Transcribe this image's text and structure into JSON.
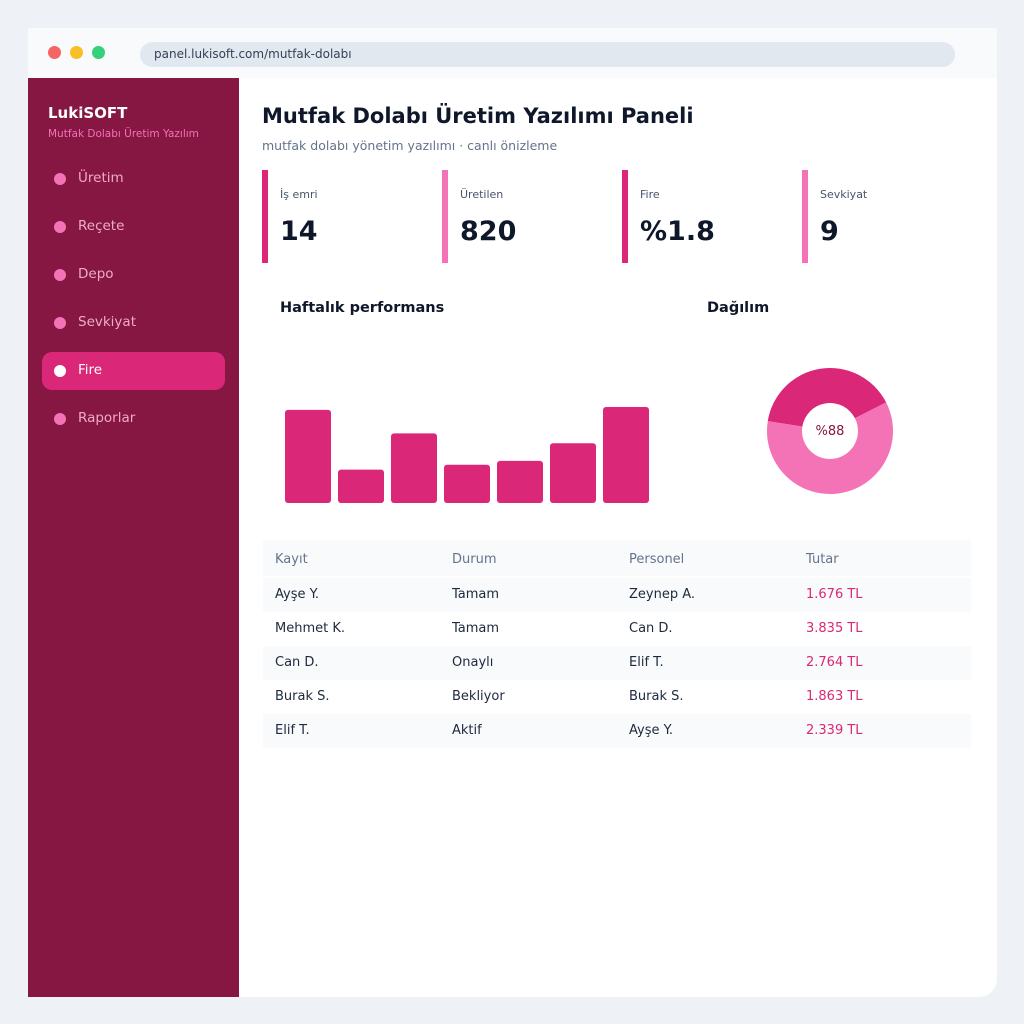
{
  "browser": {
    "url": "panel.lukisoft.com/mutfak-dolabı"
  },
  "sidebar": {
    "brand": "LukiSOFT",
    "subtitle": "Mutfak Dolabı Üretim Yazılım",
    "items": [
      {
        "label": "Üretim",
        "active": false
      },
      {
        "label": "Reçete",
        "active": false
      },
      {
        "label": "Depo",
        "active": false
      },
      {
        "label": "Sevkiyat",
        "active": false
      },
      {
        "label": "Fire",
        "active": true
      },
      {
        "label": "Raporlar",
        "active": false
      }
    ]
  },
  "header": {
    "title": "Mutfak Dolabı Üretim Yazılımı Paneli",
    "subtitle": "mutfak dolabı yönetim yazılımı · canlı önizleme"
  },
  "stats": [
    {
      "label": "İş emri",
      "value": "14"
    },
    {
      "label": "Üretilen",
      "value": "820"
    },
    {
      "label": "Fire",
      "value": "%1.8"
    },
    {
      "label": "Sevkiyat",
      "value": "9"
    }
  ],
  "performance": {
    "title": "Haftalık performans"
  },
  "distribution": {
    "title": "Dağılım",
    "center_label": "%88"
  },
  "chart_data": [
    {
      "type": "bar",
      "title": "Haftalık performans",
      "values": [
        95,
        34,
        71,
        39,
        43,
        61,
        98
      ],
      "ylim": [
        0,
        100
      ],
      "color": "#db2777"
    },
    {
      "type": "pie",
      "title": "Dağılım",
      "values": [
        40,
        60
      ],
      "colors": [
        "#db2777",
        "#f472b6"
      ],
      "center_label": "%88"
    }
  ],
  "table": {
    "headers": [
      "Kayıt",
      "Durum",
      "Personel",
      "Tutar"
    ],
    "rows": [
      [
        "Ayşe Y.",
        "Tamam",
        "Zeynep A.",
        "1.676 TL"
      ],
      [
        "Mehmet K.",
        "Tamam",
        "Can D.",
        "3.835 TL"
      ],
      [
        "Can D.",
        "Onaylı",
        "Elif T.",
        "2.764 TL"
      ],
      [
        "Burak S.",
        "Bekliyor",
        "Burak S.",
        "1.863 TL"
      ],
      [
        "Elif T.",
        "Aktif",
        "Ayşe Y.",
        "2.339 TL"
      ]
    ]
  },
  "colors": {
    "accent": "#db2777",
    "accent_light": "#f472b6",
    "sidebar": "#861642"
  }
}
